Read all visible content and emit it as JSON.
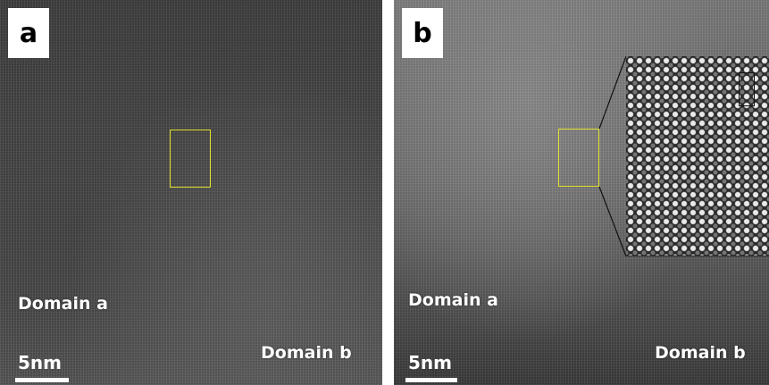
{
  "panels": [
    {
      "label": "a",
      "domain_a": "Domain a",
      "domain_b": "Domain b",
      "scale": "5nm"
    },
    {
      "label": "b",
      "domain_a": "Domain a",
      "domain_b": "Domain b",
      "scale": "5nm"
    }
  ],
  "colors": {
    "roi_box": "#e0e030",
    "label_bg": "#ffffff",
    "annotation_text": "#ffffff"
  }
}
